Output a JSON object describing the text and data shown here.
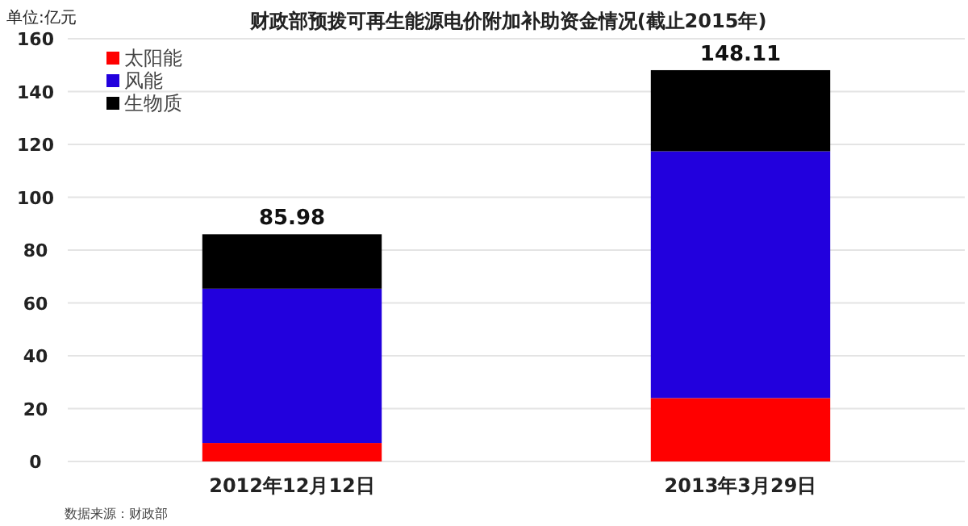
{
  "chart_data": {
    "type": "bar",
    "title": "财政部预拨可再生能源电价附加补助资金情况(截止2015年)",
    "ylabel": "单位:亿元",
    "annotations": [
      "数据来源：财政部"
    ],
    "categories": [
      "2012年12月12日",
      "2013年3月29日"
    ],
    "series": [
      {
        "name": "太阳能",
        "color": "#ff0000",
        "values": [
          7,
          24
        ]
      },
      {
        "name": "风能",
        "color": "#2200dd",
        "values": [
          58.4,
          93.4
        ]
      },
      {
        "name": "生物质",
        "color": "#000000",
        "values": [
          20.6,
          30.7
        ]
      }
    ],
    "stacked": true,
    "ylim": [
      0,
      160
    ],
    "yticks": [
      0,
      20,
      40,
      60,
      80,
      100,
      120,
      140,
      160
    ],
    "grid": "y",
    "legend": "top left",
    "totals": [
      "85.98",
      "148.11"
    ]
  }
}
